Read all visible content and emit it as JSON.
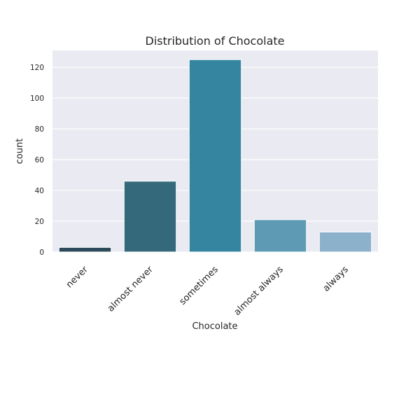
{
  "chart_data": {
    "type": "bar",
    "title": "Distribution of Chocolate",
    "xlabel": "Chocolate",
    "ylabel": "count",
    "categories": [
      "never",
      "almost never",
      "sometimes",
      "almost always",
      "always"
    ],
    "values": [
      3,
      46,
      125,
      21,
      13
    ],
    "ylim": [
      0,
      131
    ],
    "yticks": [
      "0",
      "20",
      "40",
      "60",
      "80",
      "100",
      "120"
    ],
    "colors": [
      "#2c4a5a",
      "#34697b",
      "#3585a0",
      "#5f9ab4",
      "#8cb1cb"
    ],
    "background": "#eaeaf2",
    "grid": true,
    "legend": "none"
  }
}
